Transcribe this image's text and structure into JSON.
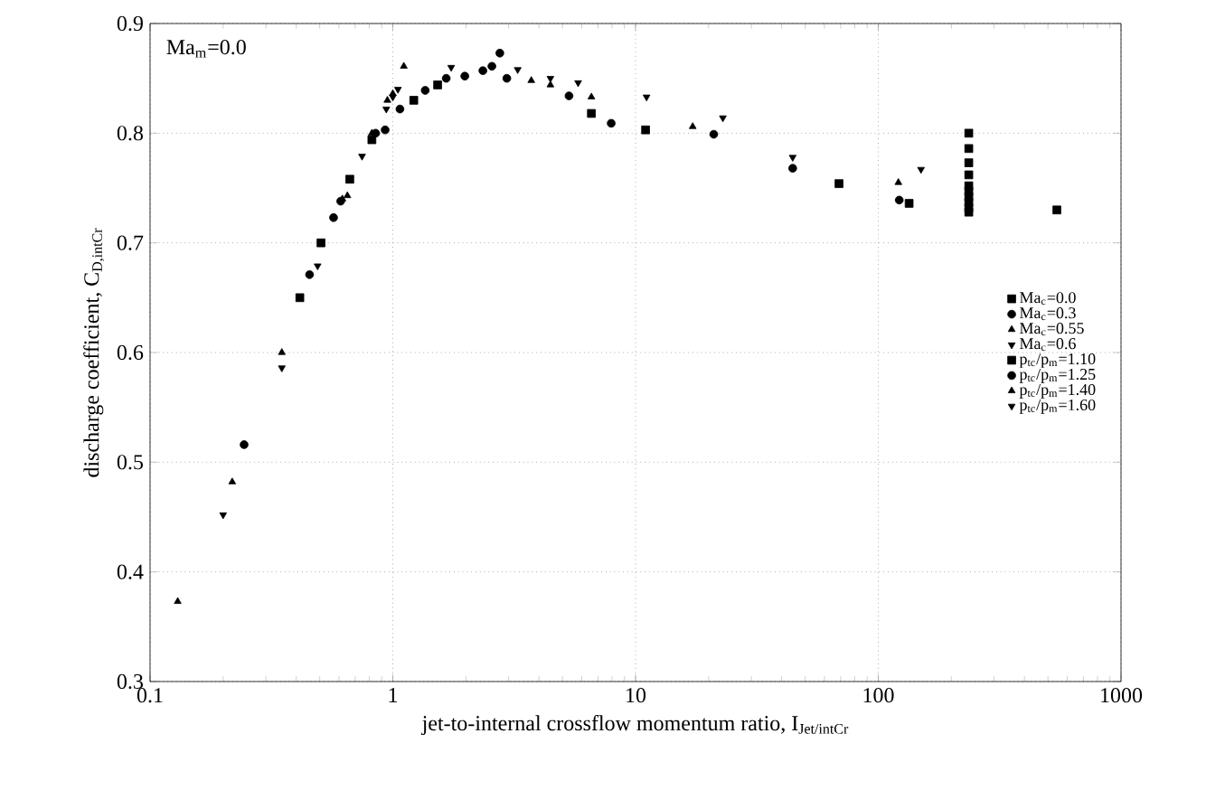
{
  "chart_data": {
    "type": "scatter",
    "xlabel": "jet-to-internal crossflow momentum ratio, I$_{Jet/intCr}$",
    "ylabel": "discharge coefficient, C$_{D,intCr}$",
    "annotations": [
      "Ma$_{m}$=0.0"
    ],
    "log": "x",
    "grid": true,
    "legend": "right",
    "xlim": [
      0.1,
      1000
    ],
    "xticks": [
      0.1,
      1,
      10,
      100,
      1000
    ],
    "ylim": [
      0.3,
      0.9
    ],
    "yticks": [
      0.3,
      0.4,
      0.5,
      0.6,
      0.7,
      0.8,
      0.9
    ],
    "series": [
      {
        "name": "Ma$_{c}$=0.0",
        "color": "#000000",
        "marker": "square",
        "x": [
          236,
          236,
          236,
          236,
          236,
          236,
          236,
          236,
          236,
          236
        ],
        "values": [
          0.8,
          0.786,
          0.773,
          0.762,
          0.752,
          0.747,
          0.742,
          0.737,
          0.732,
          0.728
        ]
      },
      {
        "name": "Ma$_{c}$=0.3",
        "color": "#000000",
        "marker": "circle",
        "x": [
          0.244,
          0.61,
          0.93,
          1.36,
          1.66,
          2.35,
          2.56,
          2.76
        ],
        "values": [
          0.516,
          0.738,
          0.803,
          0.839,
          0.85,
          0.857,
          0.861,
          0.873
        ]
      },
      {
        "name": "Ma$_{c}$=0.55",
        "color": "#000000",
        "marker": "triangle",
        "x": [
          0.13,
          0.218,
          0.349,
          0.62,
          0.95,
          1.11
        ],
        "values": [
          0.373,
          0.482,
          0.6,
          0.74,
          0.83,
          0.861
        ]
      },
      {
        "name": "Ma$_{c}$=0.6",
        "color": "#000000",
        "marker": "triangle-down",
        "x": [
          0.2,
          0.349,
          0.49,
          0.747,
          0.94,
          1.0
        ],
        "values": [
          0.452,
          0.586,
          0.679,
          0.779,
          0.822,
          0.833
        ]
      },
      {
        "name": "p$_{tc}$/p$_{m}$=1.10",
        "color": "#000000",
        "marker": "square",
        "x": [
          0.414,
          0.506,
          0.665,
          0.82,
          1.22,
          1.53,
          6.58,
          11.0,
          68.9,
          134,
          544
        ],
        "values": [
          0.65,
          0.7,
          0.758,
          0.794,
          0.83,
          0.844,
          0.818,
          0.803,
          0.754,
          0.736,
          0.73
        ]
      },
      {
        "name": "p$_{tc}$/p$_{m}$=1.25",
        "color": "#000000",
        "marker": "circle",
        "x": [
          0.454,
          0.57,
          0.85,
          1.07,
          1.98,
          2.95,
          5.32,
          7.94,
          21,
          44.4,
          122
        ],
        "values": [
          0.671,
          0.723,
          0.8,
          0.822,
          0.852,
          0.85,
          0.834,
          0.809,
          0.799,
          0.768,
          0.739
        ]
      },
      {
        "name": "p$_{tc}$/p$_{m}$=1.40",
        "color": "#000000",
        "marker": "triangle",
        "x": [
          0.65,
          0.82,
          1.0,
          3.72,
          4.46,
          6.58,
          17.2,
          121
        ],
        "values": [
          0.743,
          0.8,
          0.836,
          0.848,
          0.844,
          0.833,
          0.806,
          0.755
        ]
      },
      {
        "name": "p$_{tc}$/p$_{m}$=1.60",
        "color": "#000000",
        "marker": "triangle-down",
        "x": [
          1.05,
          1.74,
          3.27,
          4.46,
          5.8,
          11.1,
          22.9,
          44.4,
          150
        ],
        "values": [
          0.84,
          0.86,
          0.858,
          0.85,
          0.846,
          0.833,
          0.814,
          0.778,
          0.767
        ]
      }
    ]
  }
}
